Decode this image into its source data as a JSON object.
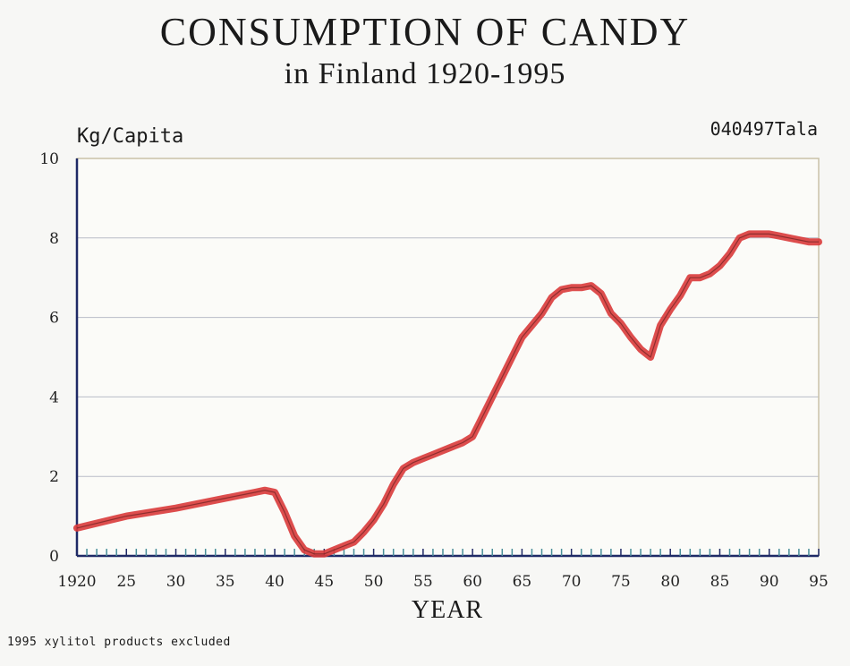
{
  "chart_data": {
    "type": "line",
    "title": "CONSUMPTION OF CANDY",
    "subtitle": "in Finland 1920-1995",
    "ylabel": "Kg/Capita",
    "xlabel": "YEAR",
    "stamp": "040497Tala",
    "footnote": "1995 xylitol products excluded",
    "xlim": [
      1920,
      1995
    ],
    "ylim": [
      0,
      10
    ],
    "xticks": [
      1920,
      1925,
      1930,
      1935,
      1940,
      1945,
      1950,
      1955,
      1960,
      1965,
      1970,
      1975,
      1980,
      1985,
      1990,
      1995
    ],
    "xtick_labels": [
      "1920",
      "25",
      "30",
      "35",
      "40",
      "45",
      "50",
      "55",
      "60",
      "65",
      "70",
      "75",
      "80",
      "85",
      "90",
      "95"
    ],
    "yticks": [
      0,
      2,
      4,
      6,
      8,
      10
    ],
    "ytick_labels": [
      "0",
      "2",
      "4",
      "6",
      "8",
      "10"
    ],
    "grid": true,
    "line_color": "#d93a3a",
    "series": [
      {
        "x": [
          1920,
          1925,
          1930,
          1935,
          1938,
          1939,
          1940,
          1941,
          1942,
          1943,
          1944,
          1945,
          1946,
          1947,
          1948,
          1949,
          1950,
          1951,
          1952,
          1953,
          1954,
          1955,
          1956,
          1957,
          1958,
          1959,
          1960,
          1961,
          1962,
          1963,
          1964,
          1965,
          1966,
          1967,
          1968,
          1969,
          1970,
          1971,
          1972,
          1973,
          1974,
          1975,
          1976,
          1977,
          1978,
          1979,
          1980,
          1981,
          1982,
          1983,
          1984,
          1985,
          1986,
          1987,
          1988,
          1989,
          1990,
          1991,
          1992,
          1993,
          1994,
          1995
        ],
        "values": [
          0.7,
          1.0,
          1.2,
          1.45,
          1.6,
          1.65,
          1.6,
          1.1,
          0.5,
          0.15,
          0.05,
          0.05,
          0.15,
          0.25,
          0.35,
          0.6,
          0.9,
          1.3,
          1.8,
          2.2,
          2.35,
          2.45,
          2.55,
          2.65,
          2.75,
          2.85,
          3.0,
          3.5,
          4.0,
          4.5,
          5.0,
          5.5,
          5.8,
          6.1,
          6.5,
          6.7,
          6.75,
          6.75,
          6.8,
          6.6,
          6.1,
          5.85,
          5.5,
          5.2,
          5.0,
          5.8,
          6.2,
          6.55,
          7.0,
          7.0,
          7.1,
          7.3,
          7.6,
          8.0,
          8.1,
          8.1,
          8.1,
          8.05,
          8.0,
          7.95,
          7.9,
          7.9
        ]
      }
    ]
  }
}
